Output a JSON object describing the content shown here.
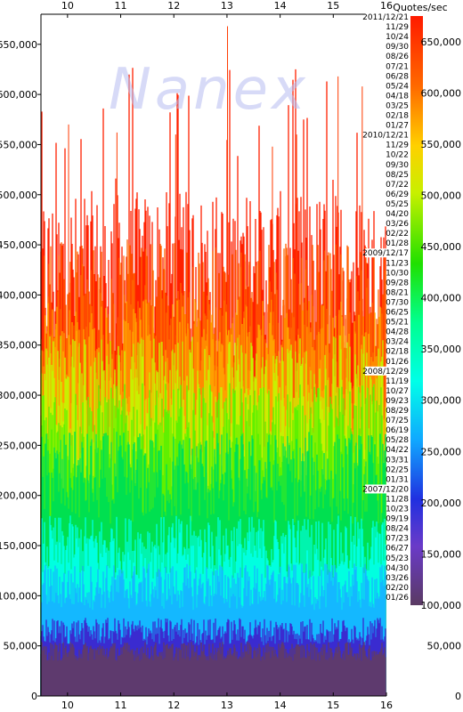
{
  "watermark": "Nanex",
  "legend_title": "Quotes/sec",
  "chart_data": {
    "type": "area",
    "title": "",
    "xlabel": "",
    "ylabel": "",
    "x_ticks": [
      "10",
      "11",
      "12",
      "13",
      "14",
      "15",
      "16"
    ],
    "xlim": [
      9.5,
      16
    ],
    "y_ticks": [
      "0",
      "50,000",
      "100,000",
      "150,000",
      "200,000",
      "250,000",
      "300,000",
      "350,000",
      "400,000",
      "450,000",
      "500,000",
      "550,000",
      "600,000",
      "650,000"
    ],
    "ylim": [
      0,
      680000
    ],
    "right_y_ticks": [
      "0",
      "50,000"
    ],
    "legend_scale_ticks": [
      "650,000",
      "600,000",
      "550,000",
      "500,000",
      "450,000",
      "400,000",
      "350,000",
      "300,000",
      "250,000",
      "200,000",
      "150,000",
      "100,000"
    ],
    "legend_scale_range": [
      100000,
      675000
    ],
    "series_dates": [
      "2011/12/21",
      "11/29",
      "10/24",
      "09/30",
      "08/26",
      "07/21",
      "06/28",
      "05/24",
      "04/18",
      "03/25",
      "02/18",
      "01/27",
      "2010/12/21",
      "11/29",
      "10/22",
      "09/30",
      "08/25",
      "07/22",
      "06/29",
      "05/25",
      "04/20",
      "03/26",
      "02/22",
      "01/28",
      "2009/12/17",
      "11/23",
      "10/30",
      "09/28",
      "08/21",
      "07/30",
      "06/25",
      "05/21",
      "04/28",
      "03/24",
      "02/18",
      "01/26",
      "2008/12/29",
      "11/19",
      "10/27",
      "09/23",
      "08/29",
      "07/25",
      "06/19",
      "05/28",
      "04/22",
      "03/31",
      "02/25",
      "01/31",
      "2007/12/20",
      "11/28",
      "10/23",
      "09/19",
      "08/24",
      "07/23",
      "06/27",
      "05/23",
      "04/30",
      "03/26",
      "02/20",
      "01/26"
    ],
    "series_bands": [
      {
        "date": "2007/01",
        "typical_peak": 45000,
        "color": "#5e3a6e"
      },
      {
        "date": "2007/12",
        "typical_peak": 65000,
        "color": "#3a2bd0"
      },
      {
        "date": "2008/06",
        "typical_peak": 110000,
        "color": "#14b8ff"
      },
      {
        "date": "2008/12",
        "typical_peak": 150000,
        "color": "#00ffe0"
      },
      {
        "date": "2009/06",
        "typical_peak": 220000,
        "color": "#00e050"
      },
      {
        "date": "2009/12",
        "typical_peak": 260000,
        "color": "#60f000"
      },
      {
        "date": "2010/06",
        "typical_peak": 300000,
        "color": "#c8f000"
      },
      {
        "date": "2010/12",
        "typical_peak": 330000,
        "color": "#ffa000"
      },
      {
        "date": "2011/06",
        "typical_peak": 380000,
        "color": "#ff6000"
      },
      {
        "date": "2011/12",
        "typical_peak": 420000,
        "color": "#ff2000"
      }
    ],
    "max_value": 668000,
    "grid": false
  }
}
